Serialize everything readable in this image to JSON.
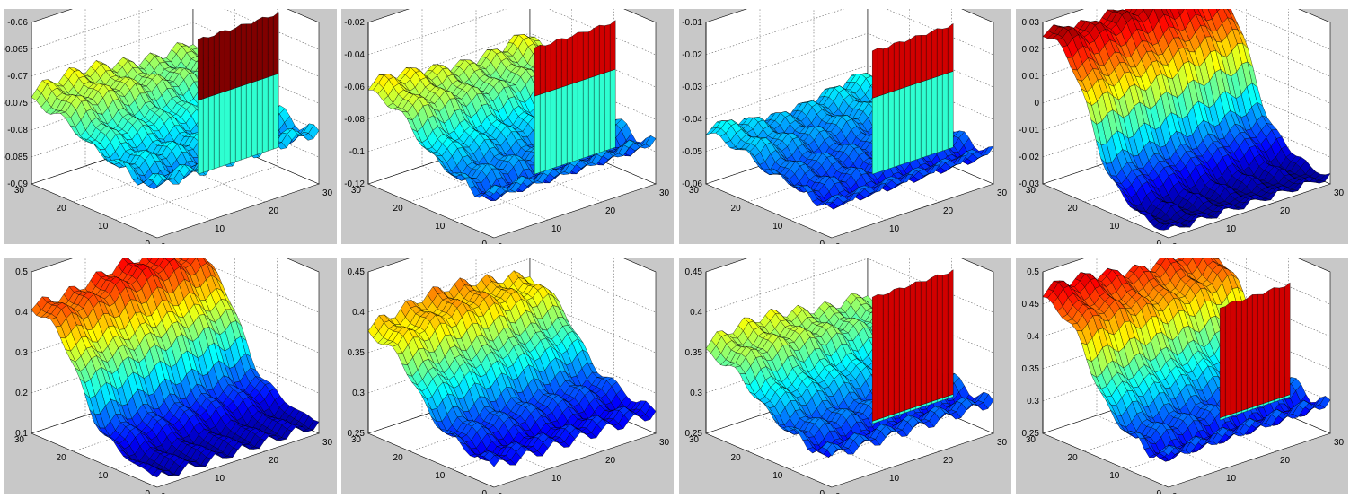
{
  "chart_data": [
    {
      "type": "surface",
      "zticks": [
        "-0.06",
        "-0.065",
        "-0.07",
        "-0.075",
        "-0.08",
        "-0.085",
        "-0.09"
      ],
      "zlim": [
        -0.09,
        -0.06
      ],
      "yticks": [
        "0",
        "10",
        "20",
        "30"
      ],
      "xticks": [
        "0",
        "10",
        "20",
        "30"
      ],
      "grid": true,
      "surface": {
        "base": 0.32,
        "left_high": 0.55,
        "wall_start": 0.5,
        "wall_height": 0.95,
        "wall_cut": 0.55
      }
    },
    {
      "type": "surface",
      "zticks": [
        "-0.02",
        "-0.04",
        "-0.06",
        "-0.08",
        "-0.1",
        "-0.12"
      ],
      "zlim": [
        -0.12,
        -0.02
      ],
      "yticks": [
        "0",
        "10",
        "20",
        "30"
      ],
      "xticks": [
        "0",
        "10",
        "20",
        "30"
      ],
      "grid": true,
      "surface": {
        "base": 0.25,
        "left_high": 0.58,
        "wall_start": 0.5,
        "wall_height": 0.9,
        "wall_cut": 0.62
      }
    },
    {
      "type": "surface",
      "zticks": [
        "-0.01",
        "-0.02",
        "-0.03",
        "-0.04",
        "-0.05",
        "-0.06"
      ],
      "zlim": [
        -0.06,
        -0.01
      ],
      "yticks": [
        "0",
        "10",
        "20",
        "30"
      ],
      "xticks": [
        "0",
        "10",
        "20",
        "30"
      ],
      "grid": true,
      "surface": {
        "base": 0.2,
        "left_high": 0.32,
        "wall_start": 0.5,
        "wall_height": 0.88,
        "wall_cut": 0.62
      }
    },
    {
      "type": "surface",
      "zticks": [
        "0.03",
        "0.02",
        "0.01",
        "0",
        "-0.01",
        "-0.02",
        "-0.03"
      ],
      "zlim": [
        -0.03,
        0.03
      ],
      "yticks": [
        "0",
        "10",
        "20",
        "30"
      ],
      "xticks": [
        "0",
        "10",
        "20",
        "30"
      ],
      "grid": true,
      "surface": {
        "base": 0.05,
        "left_high": 0.98,
        "wall_start": 2,
        "wall_height": 0,
        "wall_cut": 0
      }
    },
    {
      "type": "surface",
      "zticks": [
        "0.5",
        "0.4",
        "0.3",
        "0.2",
        "0.1"
      ],
      "zlim": [
        0.1,
        0.5
      ],
      "yticks": [
        "0",
        "10",
        "20",
        "30"
      ],
      "xticks": [
        "0",
        "10",
        "20",
        "30"
      ],
      "grid": true,
      "surface": {
        "base": 0.08,
        "left_high": 0.85,
        "wall_start": 2,
        "wall_height": 0,
        "wall_cut": 0
      }
    },
    {
      "type": "surface",
      "zticks": [
        "0.45",
        "0.4",
        "0.35",
        "0.3",
        "0.25"
      ],
      "zlim": [
        0.25,
        0.45
      ],
      "yticks": [
        "0",
        "10",
        "20",
        "30"
      ],
      "xticks": [
        "0",
        "10",
        "20",
        "30"
      ],
      "grid": true,
      "surface": {
        "base": 0.15,
        "left_high": 0.7,
        "wall_start": 2,
        "wall_height": 0,
        "wall_cut": 0
      }
    },
    {
      "type": "surface",
      "zticks": [
        "0.45",
        "0.4",
        "0.35",
        "0.3",
        "0.25"
      ],
      "zlim": [
        0.25,
        0.45
      ],
      "yticks": [
        "0",
        "10",
        "20",
        "30"
      ],
      "xticks": [
        "0",
        "10",
        "20",
        "30"
      ],
      "grid": true,
      "surface": {
        "base": 0.2,
        "left_high": 0.55,
        "wall_start": 0.5,
        "wall_height": 0.9,
        "wall_cut": 0.02
      }
    },
    {
      "type": "surface",
      "zticks": [
        "0.5",
        "0.45",
        "0.4",
        "0.35",
        "0.3",
        "0.25"
      ],
      "zlim": [
        0.25,
        0.5
      ],
      "yticks": [
        "0",
        "10",
        "20",
        "30"
      ],
      "xticks": [
        "0",
        "10",
        "20",
        "30"
      ],
      "grid": true,
      "surface": {
        "base": 0.18,
        "left_high": 0.85,
        "wall_start": 0.55,
        "wall_height": 0.82,
        "wall_cut": 0.02
      }
    }
  ]
}
